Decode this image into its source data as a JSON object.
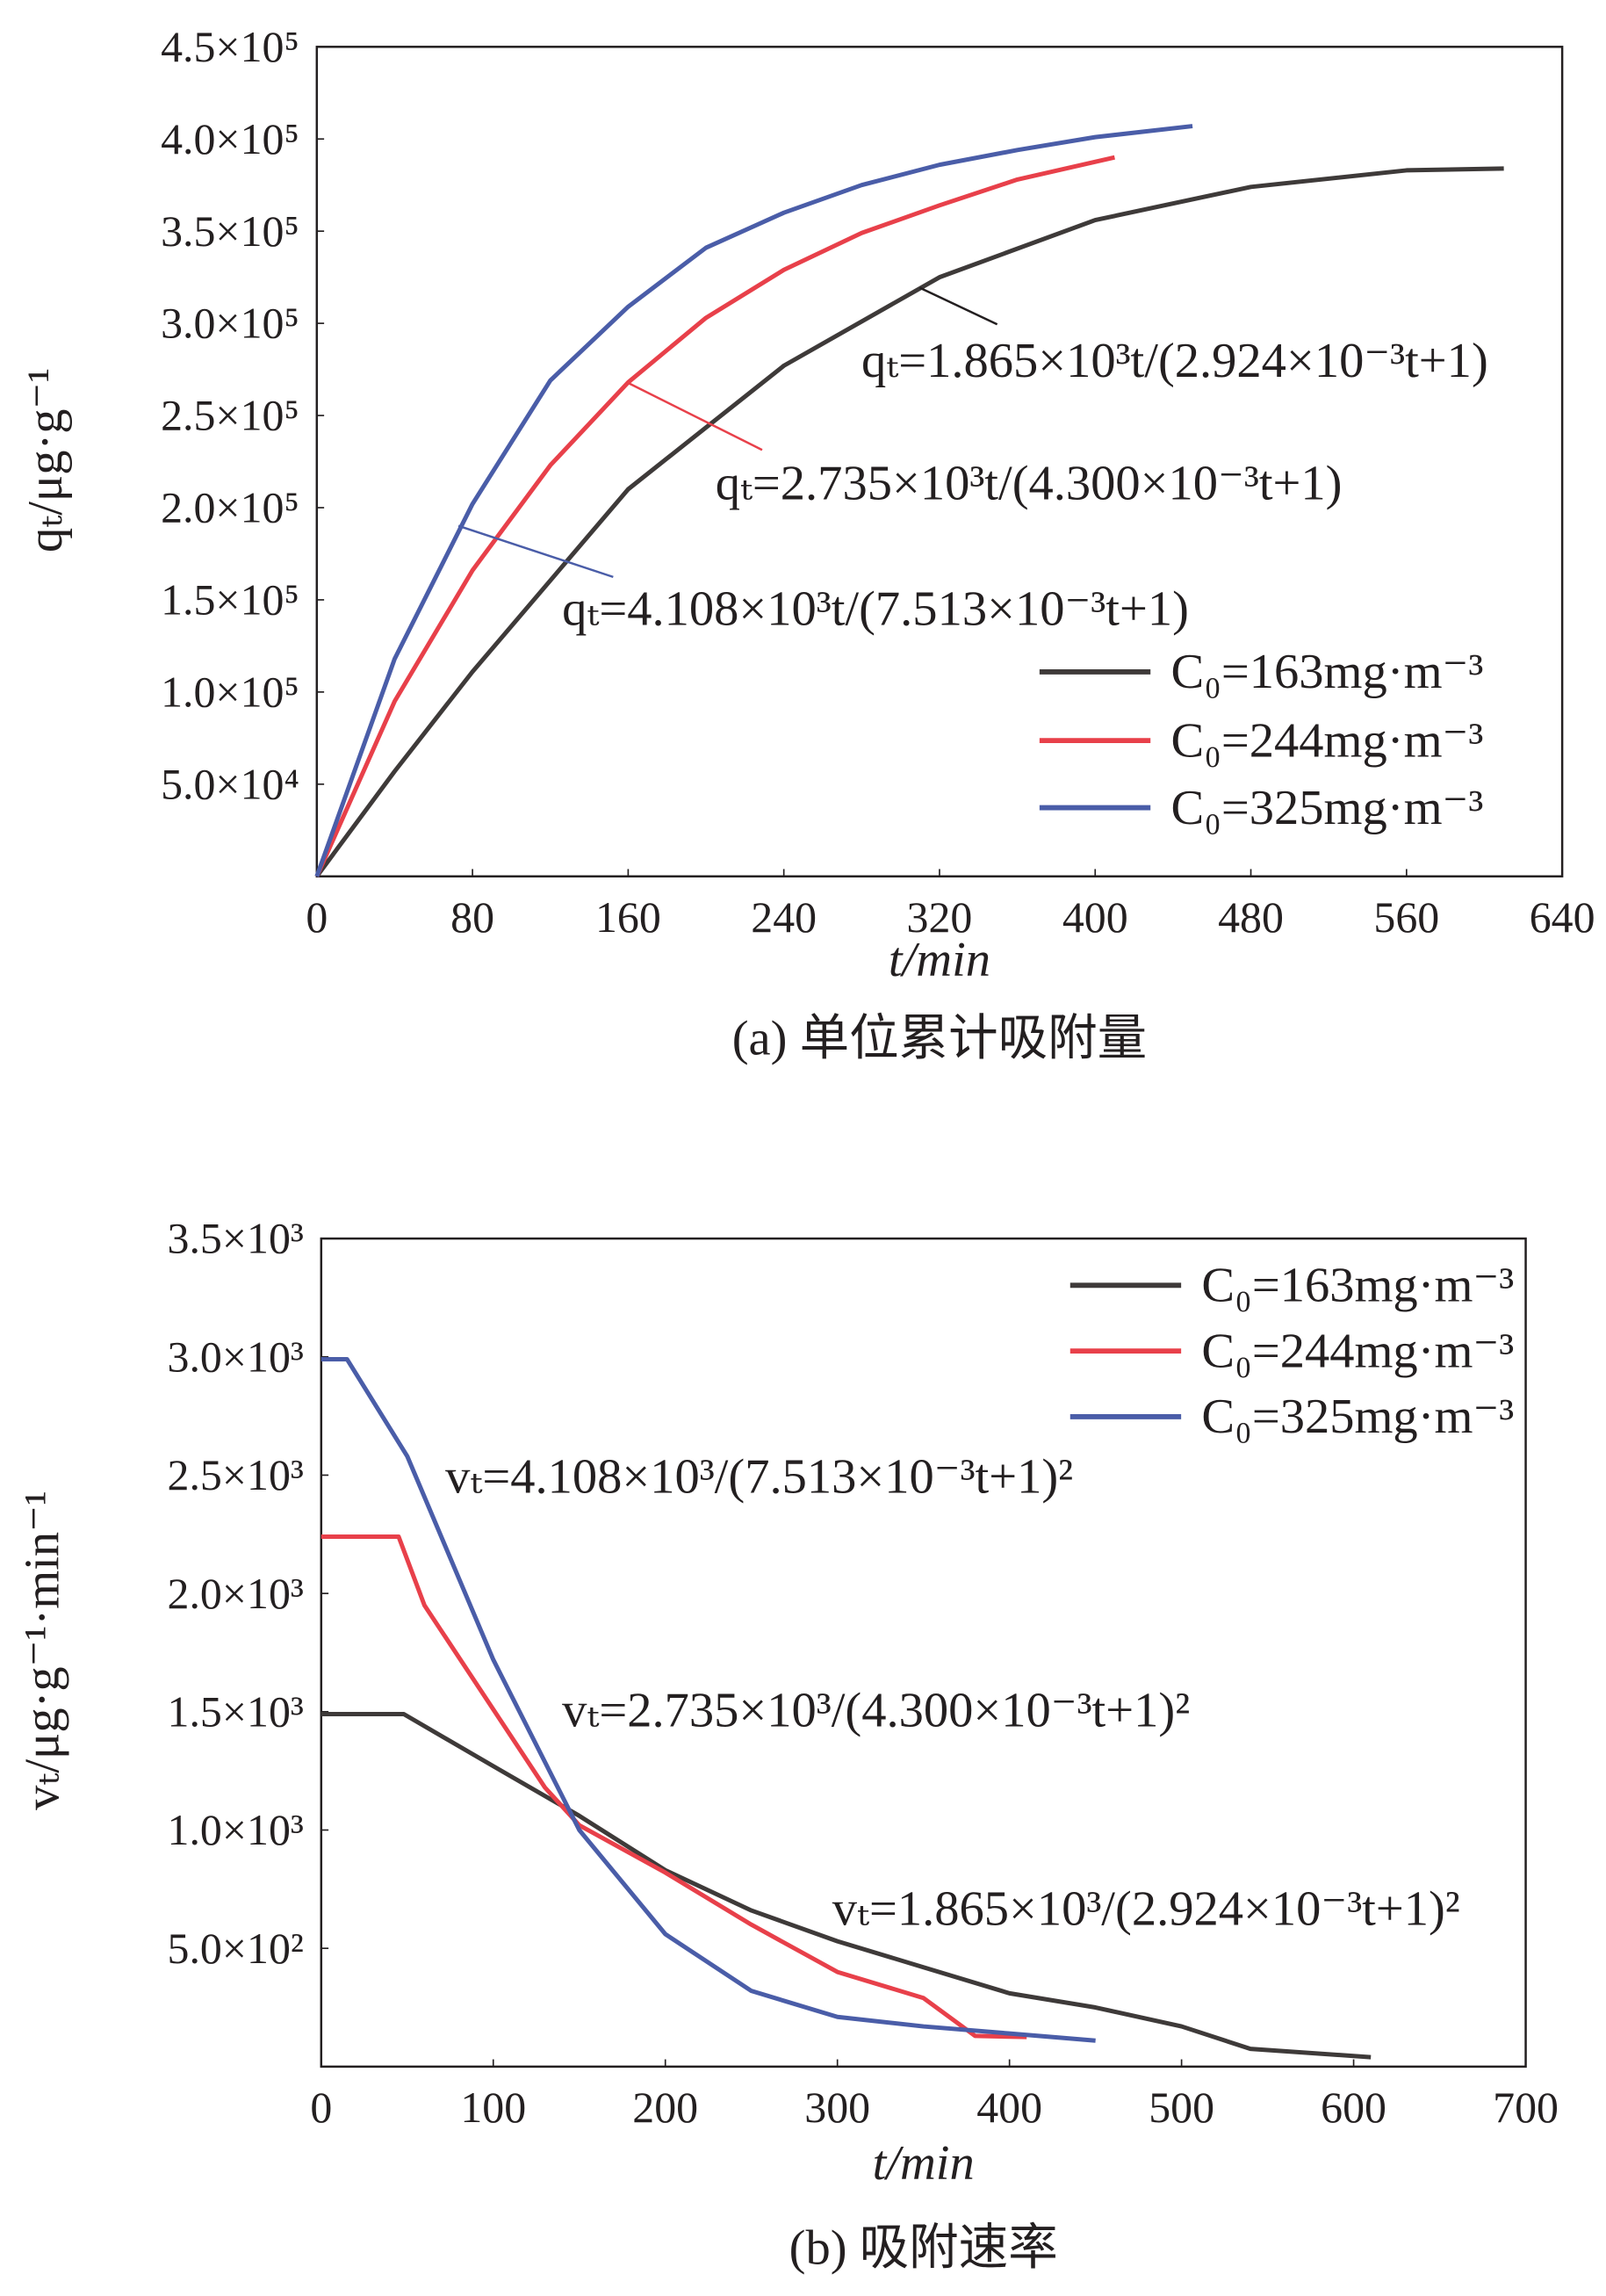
{
  "chart_data": [
    {
      "type": "line",
      "xlabel": "t/min",
      "ylabel": "qₜ/μg·g⁻¹",
      "caption": "(a) 单位累计吸附量",
      "xlim": [
        0,
        640
      ],
      "xticks": [
        0,
        80,
        160,
        240,
        320,
        400,
        480,
        560,
        640
      ],
      "ylim": [
        0,
        450000
      ],
      "yticks": [
        {
          "value": 50000,
          "label": "5.0×10⁴"
        },
        {
          "value": 100000,
          "label": "1.0×10⁵"
        },
        {
          "value": 150000,
          "label": "1.5×10⁵"
        },
        {
          "value": 200000,
          "label": "2.0×10⁵"
        },
        {
          "value": 250000,
          "label": "2.5×10⁵"
        },
        {
          "value": 300000,
          "label": "3.0×10⁵"
        },
        {
          "value": 350000,
          "label": "3.5×10⁵"
        },
        {
          "value": 400000,
          "label": "4.0×10⁵"
        },
        {
          "value": 450000,
          "label": "4.5×10⁵"
        }
      ],
      "legend": "lower right",
      "series": [
        {
          "name": "C₀=163mg·m⁻³",
          "color": "#3e3a39",
          "x": [
            0,
            40,
            80,
            160,
            240,
            320,
            400,
            480,
            560,
            610
          ],
          "values": [
            0,
            57000,
            111000,
            210000,
            277000,
            325000,
            356000,
            374000,
            383000,
            384000
          ]
        },
        {
          "name": "C₀=244mg·m⁻³",
          "color": "#e8404a",
          "x": [
            0,
            40,
            80,
            120,
            160,
            200,
            240,
            280,
            320,
            360,
            410
          ],
          "values": [
            0,
            95000,
            166000,
            223000,
            268000,
            303000,
            329000,
            349000,
            364000,
            378000,
            390000
          ]
        },
        {
          "name": "C₀=325mg·m⁻³",
          "color": "#4a5da8",
          "x": [
            0,
            40,
            80,
            120,
            160,
            200,
            240,
            280,
            320,
            360,
            400,
            450
          ],
          "values": [
            0,
            118000,
            202000,
            269000,
            309000,
            341000,
            360000,
            375000,
            386000,
            394000,
            401000,
            407000
          ]
        }
      ],
      "annotations": [
        {
          "text": "qₜ=1.865×10³t/(2.924×10⁻³t+1)",
          "color": "#231f20"
        },
        {
          "text": "qₜ=2.735×10³t/(4.300×10⁻³t+1)",
          "color": "#e8404a"
        },
        {
          "text": "qₜ=4.108×10³t/(7.513×10⁻³t+1)",
          "color": "#4a5da8"
        }
      ]
    },
    {
      "type": "line",
      "xlabel": "t/min",
      "ylabel": "vₜ/μg·g⁻¹·min⁻¹",
      "caption": "(b) 吸附速率",
      "xlim": [
        0,
        700
      ],
      "xticks": [
        0,
        100,
        200,
        300,
        400,
        500,
        600,
        700
      ],
      "ylim": [
        0,
        3500
      ],
      "yticks": [
        {
          "value": 500,
          "label": "5.0×10²"
        },
        {
          "value": 1000,
          "label": "1.0×10³"
        },
        {
          "value": 1500,
          "label": "1.5×10³"
        },
        {
          "value": 2000,
          "label": "2.0×10³"
        },
        {
          "value": 2500,
          "label": "2.5×10³"
        },
        {
          "value": 3000,
          "label": "3.0×10³"
        },
        {
          "value": 3500,
          "label": "3.5×10³"
        }
      ],
      "legend": "upper right",
      "series": [
        {
          "name": "C₀=163mg·m⁻³",
          "color": "#3e3a39",
          "x": [
            0,
            48,
            100,
            150,
            200,
            250,
            300,
            350,
            400,
            450,
            500,
            540,
            610
          ],
          "values": [
            1490,
            1490,
            1270,
            1060,
            830,
            660,
            530,
            420,
            310,
            250,
            170,
            75,
            40
          ]
        },
        {
          "name": "C₀=244mg·m⁻³",
          "color": "#e8404a",
          "x": [
            0,
            45,
            60,
            100,
            130,
            150,
            200,
            250,
            300,
            350,
            380,
            410
          ],
          "values": [
            2240,
            2240,
            1950,
            1510,
            1180,
            1020,
            820,
            600,
            400,
            290,
            130,
            125
          ]
        },
        {
          "name": "C₀=325mg·m⁻³",
          "color": "#4a5da8",
          "x": [
            0,
            15,
            50,
            100,
            150,
            200,
            250,
            300,
            350,
            400,
            450
          ],
          "values": [
            2990,
            2990,
            2580,
            1720,
            1000,
            560,
            320,
            210,
            170,
            140,
            110
          ]
        }
      ],
      "annotations": [
        {
          "text": "vₜ=4.108×10³/(7.513×10⁻³t+1)²",
          "color": "#4a5da8"
        },
        {
          "text": "vₜ=2.735×10³/(4.300×10⁻³t+1)²",
          "color": "#e8404a"
        },
        {
          "text": "vₜ=1.865×10³/(2.924×10⁻³t+1)²",
          "color": "#231f20"
        }
      ]
    }
  ]
}
